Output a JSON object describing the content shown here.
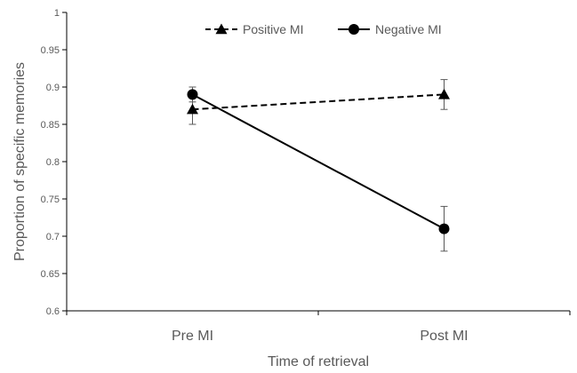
{
  "chart_data": {
    "type": "line",
    "categories": [
      "Pre MI",
      "Post MI"
    ],
    "series": [
      {
        "name": "Positive MI",
        "values": [
          0.87,
          0.89
        ],
        "error": [
          0.02,
          0.02
        ],
        "line_style": "dashed",
        "marker": "triangle",
        "color": "#000000"
      },
      {
        "name": "Negative MI",
        "values": [
          0.89,
          0.71
        ],
        "error": [
          0.01,
          0.03
        ],
        "line_style": "solid",
        "marker": "circle",
        "color": "#000000"
      }
    ],
    "title": "",
    "xlabel": "Time of retrieval",
    "ylabel": "Proportion of specific memories",
    "ylim": [
      0.6,
      1
    ],
    "yticks": [
      "0.6",
      "0.65",
      "0.7",
      "0.75",
      "0.8",
      "0.85",
      "0.9",
      "0.95",
      "1"
    ],
    "grid": false,
    "legend_position": "top-center",
    "axis_color": "#000000",
    "text_color": "#595959"
  }
}
